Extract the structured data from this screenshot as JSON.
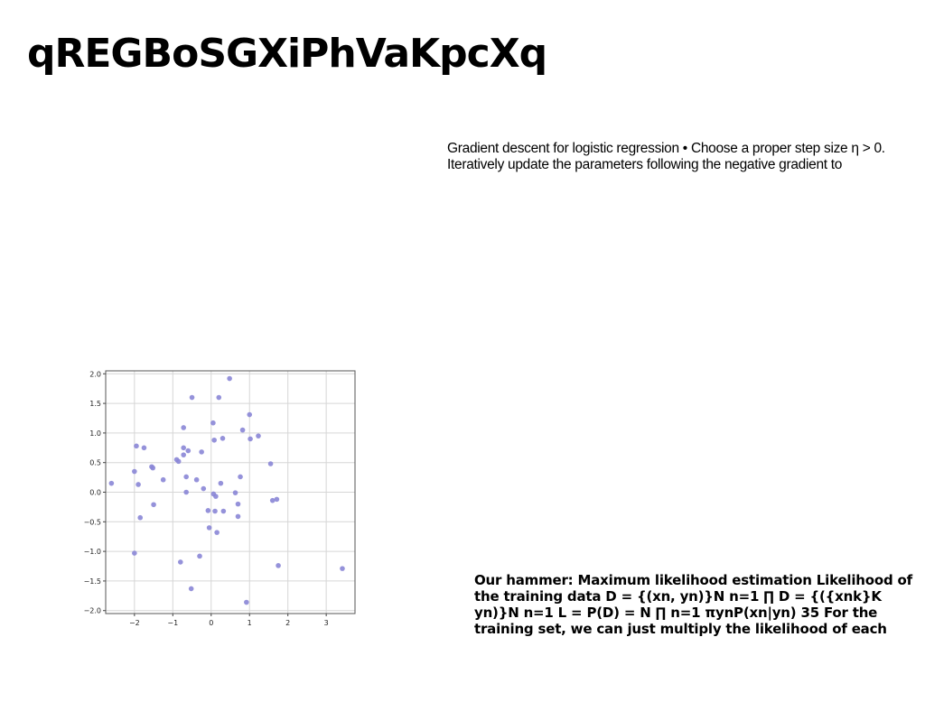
{
  "page": {
    "title": "qREGBoSGXiPhVaKpcXq",
    "paragraph_top": "Gradient descent for logistic regression • Choose a proper step size η > 0. Iteratively update the parameters following the negative gradient to",
    "paragraph_bottom": "Our hammer: Maximum likelihood estimation Likelihood of the training data D = {(xn, yn)}N n=1 ∏ D = {({xnk}K yn)}N n=1 L = P(D) = N ∏ n=1 πynP(xn|yn) 35 For the training set, we can just multiply the likelihood of each"
  },
  "chart_data": {
    "type": "scatter",
    "xlim": [
      -2.75,
      3.75
    ],
    "ylim": [
      -2.05,
      2.05
    ],
    "xticks": [
      -2,
      -1,
      0,
      1,
      2,
      3
    ],
    "yticks": [
      2.0,
      1.5,
      1.0,
      0.5,
      0.0,
      -0.5,
      -1.0,
      -1.5,
      -2.0
    ],
    "xtick_labels": [
      "−2",
      "−1",
      "0",
      "1",
      "2",
      "3"
    ],
    "ytick_labels": [
      "2.0",
      "1.5",
      "1.0",
      "0.5",
      "0.0",
      "−0.5",
      "−1.0",
      "−1.5",
      "−2.0"
    ],
    "grid": true,
    "point_color": "#8a86d6",
    "points": [
      [
        -2.6,
        0.15
      ],
      [
        -2.0,
        0.35
      ],
      [
        -1.95,
        0.78
      ],
      [
        -1.9,
        0.13
      ],
      [
        -1.85,
        -0.43
      ],
      [
        -1.75,
        0.75
      ],
      [
        -1.55,
        0.43
      ],
      [
        -1.52,
        0.41
      ],
      [
        -1.5,
        -0.21
      ],
      [
        -1.25,
        0.21
      ],
      [
        -2.0,
        -1.03
      ],
      [
        -0.9,
        0.55
      ],
      [
        -0.85,
        0.52
      ],
      [
        -0.8,
        -1.18
      ],
      [
        -0.72,
        1.09
      ],
      [
        -0.72,
        0.75
      ],
      [
        -0.72,
        0.63
      ],
      [
        -0.65,
        0.26
      ],
      [
        -0.65,
        0.0
      ],
      [
        -0.6,
        0.7
      ],
      [
        -0.5,
        1.6
      ],
      [
        -0.52,
        -1.63
      ],
      [
        -0.38,
        0.21
      ],
      [
        -0.3,
        -1.08
      ],
      [
        -0.25,
        0.68
      ],
      [
        -0.2,
        0.06
      ],
      [
        -0.08,
        -0.31
      ],
      [
        -0.05,
        -0.6
      ],
      [
        0.05,
        1.17
      ],
      [
        0.08,
        0.88
      ],
      [
        0.06,
        -0.03
      ],
      [
        0.12,
        -0.07
      ],
      [
        0.1,
        -0.32
      ],
      [
        0.15,
        -0.68
      ],
      [
        0.2,
        1.6
      ],
      [
        0.25,
        0.15
      ],
      [
        0.3,
        0.91
      ],
      [
        0.32,
        -0.32
      ],
      [
        0.48,
        1.92
      ],
      [
        0.63,
        -0.01
      ],
      [
        0.7,
        -0.2
      ],
      [
        0.7,
        -0.41
      ],
      [
        0.76,
        0.26
      ],
      [
        0.82,
        1.05
      ],
      [
        1.0,
        1.31
      ],
      [
        1.02,
        0.9
      ],
      [
        1.23,
        0.95
      ],
      [
        0.92,
        -1.86
      ],
      [
        1.55,
        0.48
      ],
      [
        1.6,
        -0.14
      ],
      [
        1.71,
        -0.12
      ],
      [
        1.75,
        -1.24
      ],
      [
        3.42,
        -1.29
      ]
    ]
  }
}
